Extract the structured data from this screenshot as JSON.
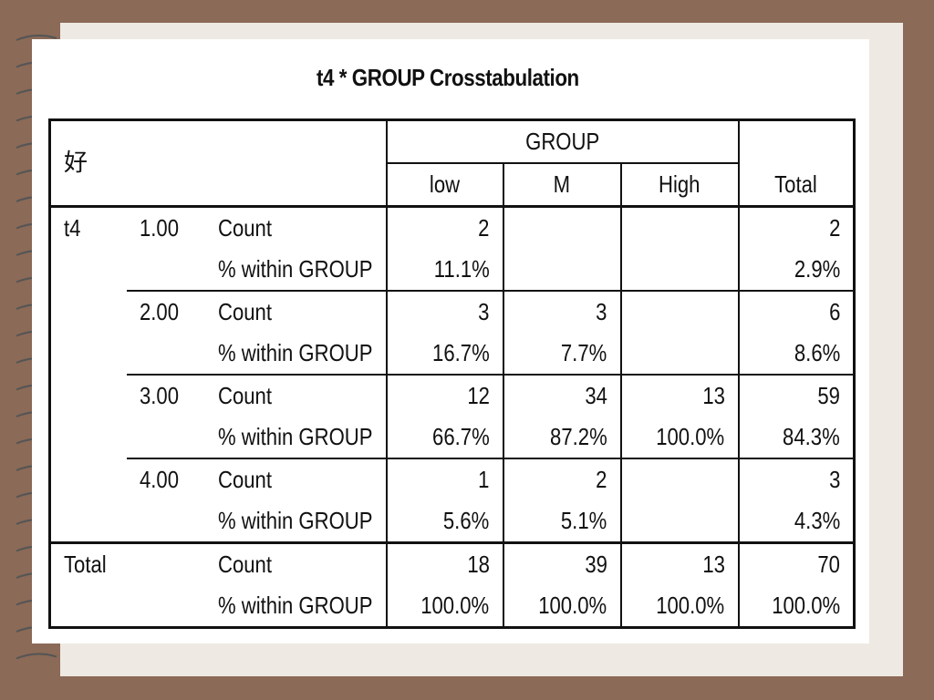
{
  "title": "t4 * GROUP Crosstabulation",
  "corner_label": "好",
  "group_header": "GROUP",
  "columns": [
    "low",
    "M",
    "High"
  ],
  "total_col": "Total",
  "row_var": "t4",
  "stat_labels": {
    "count": "Count",
    "pct": "% within GROUP"
  },
  "rows": [
    {
      "level": "1.00",
      "count": [
        "2",
        "",
        "",
        "2"
      ],
      "pct": [
        "11.1%",
        "",
        "",
        "2.9%"
      ]
    },
    {
      "level": "2.00",
      "count": [
        "3",
        "3",
        "",
        "6"
      ],
      "pct": [
        "16.7%",
        "7.7%",
        "",
        "8.6%"
      ]
    },
    {
      "level": "3.00",
      "count": [
        "12",
        "34",
        "13",
        "59"
      ],
      "pct": [
        "66.7%",
        "87.2%",
        "100.0%",
        "84.3%"
      ]
    },
    {
      "level": "4.00",
      "count": [
        "1",
        "2",
        "",
        "3"
      ],
      "pct": [
        "5.6%",
        "5.1%",
        "",
        "4.3%"
      ]
    }
  ],
  "total_row": {
    "label": "Total",
    "count": [
      "18",
      "39",
      "13",
      "70"
    ],
    "pct": [
      "100.0%",
      "100.0%",
      "100.0%",
      "100.0%"
    ]
  },
  "colors": {
    "background": "#8b6a57",
    "page": "#eee9e3",
    "slide": "#ffffff",
    "text": "#111111"
  }
}
